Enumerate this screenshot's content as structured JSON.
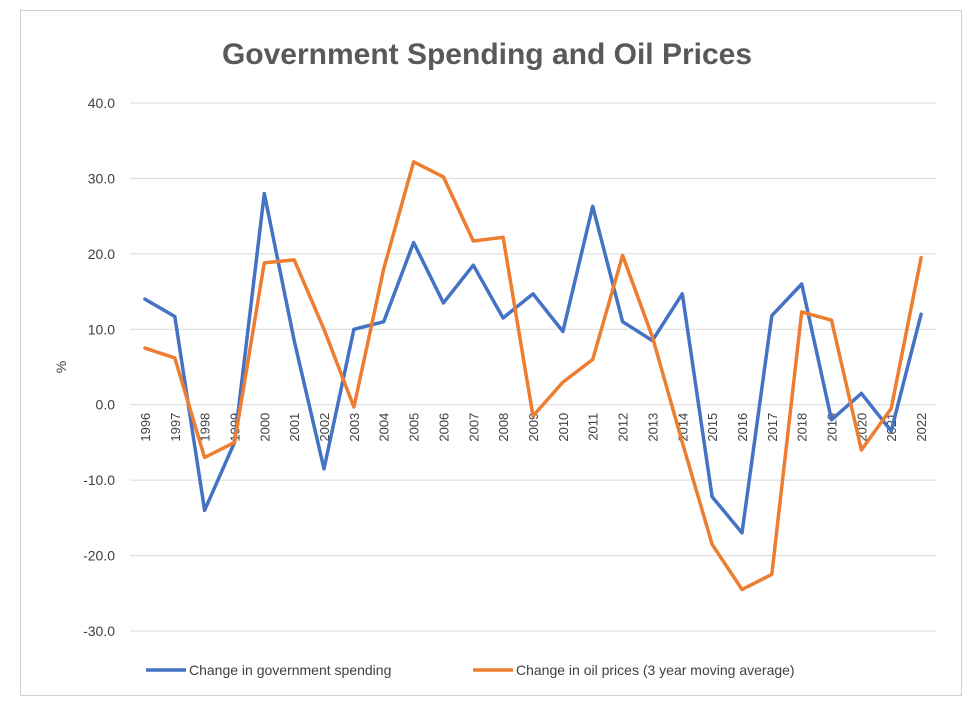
{
  "chart_data": {
    "type": "line",
    "title": "Government Spending and Oil Prices",
    "xlabel": "",
    "ylabel": "%",
    "ylim": [
      -30,
      40
    ],
    "yticks": [
      "40.0",
      "30.0",
      "20.0",
      "10.0",
      "0.0",
      "-10.0",
      "-20.0",
      "-30.0"
    ],
    "grid": true,
    "legend": "bottom",
    "categories": [
      "1996",
      "1997",
      "1998",
      "1999",
      "2000",
      "2001",
      "2002",
      "2003",
      "2004",
      "2005",
      "2006",
      "2007",
      "2008",
      "2009",
      "2010",
      "2011",
      "2012",
      "2013",
      "2014",
      "2015",
      "2016",
      "2017",
      "2018",
      "2019",
      "2020",
      "2021",
      "2022"
    ],
    "series": [
      {
        "name": "Change in government spending",
        "color": "#4472C4",
        "values": [
          14.0,
          11.7,
          -14.0,
          -5.0,
          28.0,
          8.5,
          -8.5,
          10.0,
          11.0,
          21.5,
          13.5,
          18.5,
          11.5,
          14.7,
          9.7,
          26.3,
          11.0,
          8.5,
          14.7,
          -12.2,
          -17.0,
          11.8,
          16.0,
          -2.0,
          1.5,
          -3.5,
          12.0
        ]
      },
      {
        "name": "Change in oil prices (3 year moving average)",
        "color": "#ED7D31",
        "values": [
          7.5,
          6.2,
          -7.0,
          -5.0,
          18.8,
          19.2,
          10.0,
          -0.3,
          18.0,
          32.2,
          30.2,
          21.7,
          22.2,
          -1.5,
          3.0,
          6.0,
          19.8,
          9.0,
          -5.0,
          -18.5,
          -24.5,
          -22.5,
          12.3,
          11.2,
          -6.0,
          -0.5,
          19.5
        ]
      }
    ]
  }
}
